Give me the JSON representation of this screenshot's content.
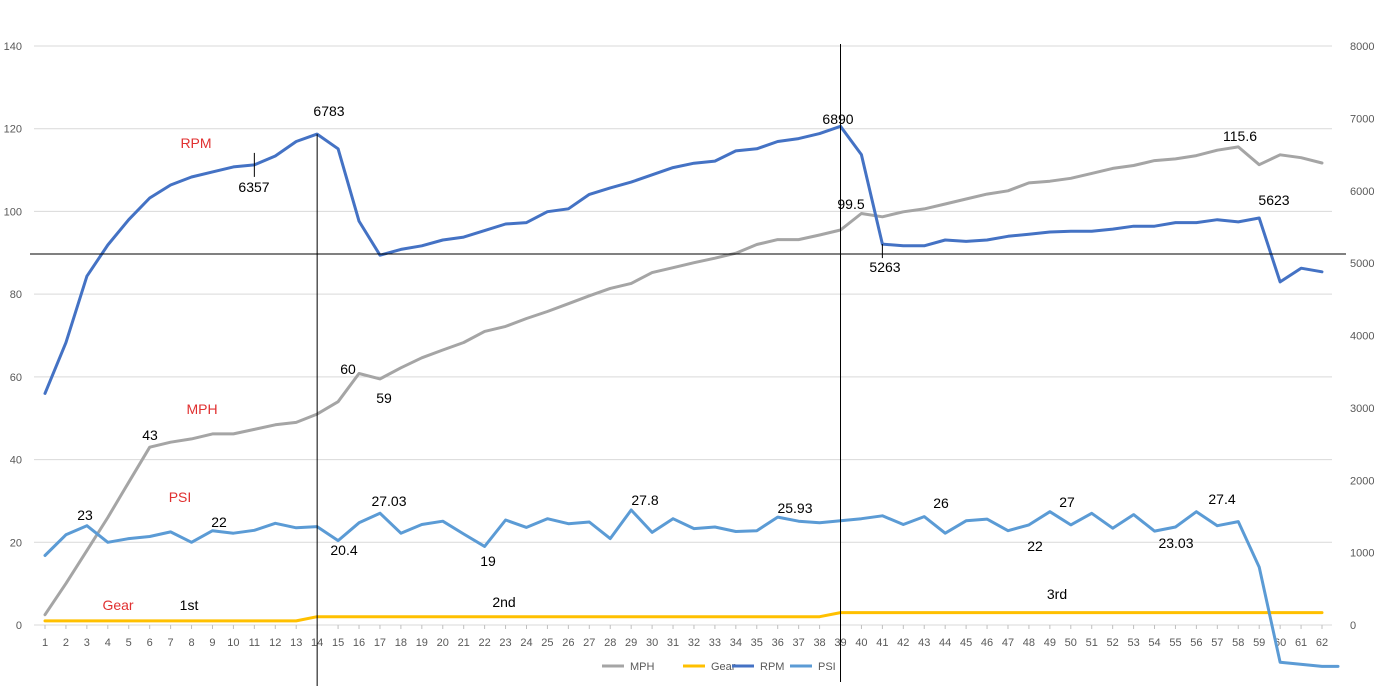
{
  "chart_data": {
    "type": "line",
    "title": "",
    "x": [
      1,
      2,
      3,
      4,
      5,
      6,
      7,
      8,
      9,
      10,
      11,
      12,
      13,
      14,
      15,
      16,
      17,
      18,
      19,
      20,
      21,
      22,
      23,
      24,
      25,
      26,
      27,
      28,
      29,
      30,
      31,
      32,
      33,
      34,
      35,
      36,
      37,
      38,
      39,
      40,
      41,
      42,
      43,
      44,
      45,
      46,
      47,
      48,
      49,
      50,
      51,
      52,
      53,
      54,
      55,
      56,
      57,
      58,
      59,
      60,
      61,
      62
    ],
    "y_left": {
      "min": 0,
      "max": 140,
      "ticks": [
        0,
        20,
        40,
        60,
        80,
        100,
        120,
        140
      ]
    },
    "y_right": {
      "min": 0,
      "max": 8000,
      "ticks": [
        0,
        1000,
        2000,
        3000,
        4000,
        5000,
        6000,
        7000,
        8000
      ]
    },
    "grid": true,
    "legend_position": "bottom",
    "series": [
      {
        "name": "MPH",
        "axis": "left",
        "color": "#a5a5a5",
        "values": [
          2.5,
          10,
          18,
          26,
          34.5,
          43,
          44.2,
          45,
          46.2,
          46.2,
          47.3,
          48.4,
          49,
          51,
          54,
          60.8,
          59.5,
          62.2,
          64.6,
          66.5,
          68.3,
          71,
          72.2,
          74.1,
          75.8,
          77.7,
          79.6,
          81.4,
          82.6,
          85.2,
          86.4,
          87.6,
          88.7,
          89.9,
          92,
          93.2,
          93.2,
          94.3,
          95.5,
          99.5,
          98.7,
          99.9,
          100.6,
          101.8,
          103,
          104.2,
          105,
          106.9,
          107.3,
          108,
          109.2,
          110.4,
          111.1,
          112.3,
          112.7,
          113.5,
          114.8,
          115.6,
          111.3,
          113.7,
          113,
          111.7
        ]
      },
      {
        "name": "Gear",
        "axis": "left",
        "color": "#ffc000",
        "values": [
          1,
          1,
          1,
          1,
          1,
          1,
          1,
          1,
          1,
          1,
          1,
          1,
          1,
          2,
          2,
          2,
          2,
          2,
          2,
          2,
          2,
          2,
          2,
          2,
          2,
          2,
          2,
          2,
          2,
          2,
          2,
          2,
          2,
          2,
          2,
          2,
          2,
          2,
          3,
          3,
          3,
          3,
          3,
          3,
          3,
          3,
          3,
          3,
          3,
          3,
          3,
          3,
          3,
          3,
          3,
          3,
          3,
          3,
          3,
          3,
          3,
          3
        ]
      },
      {
        "name": "RPM",
        "axis": "right",
        "color": "#4472c4",
        "values": [
          3200,
          3900,
          4820,
          5250,
          5600,
          5900,
          6080,
          6190,
          6260,
          6330,
          6357,
          6480,
          6680,
          6783,
          6580,
          5580,
          5110,
          5190,
          5240,
          5320,
          5360,
          5450,
          5540,
          5560,
          5710,
          5750,
          5950,
          6040,
          6120,
          6220,
          6320,
          6380,
          6410,
          6550,
          6580,
          6680,
          6720,
          6790,
          6890,
          6500,
          5263,
          5240,
          5240,
          5320,
          5300,
          5320,
          5370,
          5400,
          5430,
          5440,
          5440,
          5470,
          5510,
          5510,
          5560,
          5560,
          5600,
          5570,
          5623,
          4740,
          4930,
          4880
        ]
      },
      {
        "name": "PSI",
        "axis": "left",
        "color": "#5b9bd5",
        "values": [
          16.8,
          21.8,
          24,
          20,
          20.9,
          21.4,
          22.5,
          20,
          22.8,
          22.2,
          22.9,
          24.6,
          23.5,
          23.8,
          20.4,
          24.7,
          27.03,
          22.2,
          24.3,
          25.1,
          22,
          19,
          25.4,
          23.6,
          25.7,
          24.5,
          24.9,
          20.9,
          27.8,
          22.4,
          25.7,
          23.3,
          23.7,
          22.6,
          22.8,
          26.1,
          25.1,
          24.7,
          25.2,
          25.7,
          26.4,
          24.3,
          26.2,
          22.2,
          25.2,
          25.6,
          22.8,
          24.2,
          27.4,
          24.2,
          27,
          23.4,
          26.7,
          22.7,
          23.7,
          27.4,
          24,
          25,
          14,
          -9,
          -10,
          -10
        ]
      }
    ],
    "series_labels": [
      "RPM",
      "MPH",
      "PSI",
      "Gear"
    ],
    "annotations": {
      "rpm": [
        "6783",
        "6357",
        "6890",
        "5263",
        "5623"
      ],
      "mph": [
        "43",
        "60",
        "59",
        "99.5",
        "115.6"
      ],
      "psi": [
        "23",
        "22",
        "20.4",
        "27.03",
        "19",
        "27.8",
        "25.93",
        "26",
        "22",
        "27",
        "23.03",
        "27.4"
      ],
      "gear": [
        "1st",
        "2nd",
        "3rd"
      ]
    },
    "legend": [
      "MPH",
      "Gear",
      "RPM",
      "PSI"
    ]
  }
}
